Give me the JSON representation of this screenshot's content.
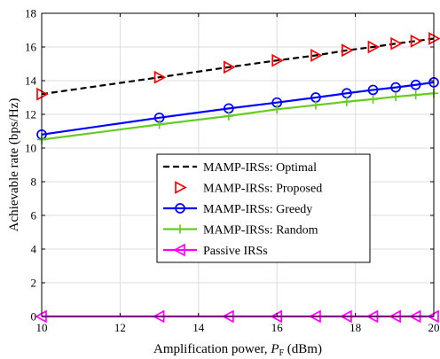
{
  "chart_data": {
    "type": "line",
    "title": "",
    "xlabel": "Amplification power, ",
    "xlabel_symbol": "P",
    "xlabel_subscript": "F",
    "xlabel_unit": " (dBm)",
    "ylabel": "Achievable rate (bps/Hz)",
    "xlim": [
      10,
      20
    ],
    "ylim": [
      0,
      18
    ],
    "xticks": [
      10,
      12,
      14,
      16,
      18,
      20
    ],
    "yticks": [
      0,
      2,
      4,
      6,
      8,
      10,
      12,
      14,
      16,
      18
    ],
    "grid": true,
    "legend_position": "center-right",
    "series": [
      {
        "name": "MAMP-IRSs: Optimal",
        "style": "dashed",
        "marker": "none",
        "color": "#000000",
        "x": [
          10,
          13,
          14.77,
          16,
          16.99,
          17.78,
          18.45,
          19.03,
          19.54,
          20
        ],
        "y": [
          13.2,
          14.2,
          14.8,
          15.2,
          15.5,
          15.8,
          16.0,
          16.2,
          16.35,
          16.5
        ]
      },
      {
        "name": "MAMP-IRSs: Proposed",
        "style": "none",
        "marker": "triangle-right",
        "color": "#ff0000",
        "x": [
          10,
          13,
          14.77,
          16,
          16.99,
          17.78,
          18.45,
          19.03,
          19.54,
          20
        ],
        "y": [
          13.2,
          14.2,
          14.8,
          15.2,
          15.5,
          15.8,
          16.0,
          16.2,
          16.35,
          16.5
        ]
      },
      {
        "name": "MAMP-IRSs: Greedy",
        "style": "solid",
        "marker": "circle",
        "color": "#0000ff",
        "x": [
          10,
          13,
          14.77,
          16,
          16.99,
          17.78,
          18.45,
          19.03,
          19.54,
          20
        ],
        "y": [
          10.8,
          11.8,
          12.35,
          12.7,
          13.0,
          13.25,
          13.45,
          13.6,
          13.75,
          13.9
        ]
      },
      {
        "name": "MAMP-IRSs: Random",
        "style": "solid",
        "marker": "plus",
        "color": "#66cc22",
        "x": [
          10,
          13,
          14.77,
          16,
          16.99,
          17.78,
          18.45,
          19.03,
          19.54,
          20
        ],
        "y": [
          10.5,
          11.4,
          11.9,
          12.3,
          12.55,
          12.75,
          12.9,
          13.05,
          13.15,
          13.25
        ]
      },
      {
        "name": "Passive IRSs",
        "style": "solid",
        "marker": "triangle-left",
        "color": "#ff00ff",
        "x": [
          10,
          13,
          14.77,
          16,
          16.99,
          17.78,
          18.45,
          19.03,
          19.54,
          20
        ],
        "y": [
          0,
          0,
          0,
          0,
          0,
          0,
          0,
          0,
          0,
          0
        ]
      }
    ]
  }
}
